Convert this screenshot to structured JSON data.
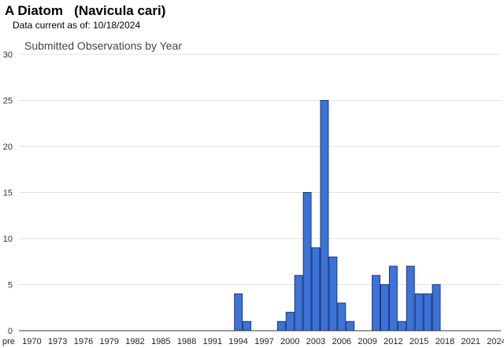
{
  "page": {
    "title": "A Diatom   (Navicula cari)",
    "data_current_label": "Data current as of:",
    "data_current_date": "10/18/2024"
  },
  "chart_data": {
    "type": "bar",
    "title": "Submitted Observations by Year",
    "xlabel": "",
    "ylabel": "",
    "ylim": [
      0,
      30
    ],
    "yticks": [
      0,
      5,
      10,
      15,
      20,
      25,
      30
    ],
    "grid": true,
    "legend": "none",
    "bar_color": "#3d73d8",
    "bar_stroke": "#1a3a78",
    "categories": [
      "pre 1970",
      "1970",
      "1971",
      "1972",
      "1973",
      "1974",
      "1975",
      "1976",
      "1977",
      "1978",
      "1979",
      "1980",
      "1981",
      "1982",
      "1983",
      "1984",
      "1985",
      "1986",
      "1987",
      "1988",
      "1989",
      "1990",
      "1991",
      "1992",
      "1993",
      "1994",
      "1995",
      "1996",
      "1997",
      "1998",
      "1999",
      "2000",
      "2001",
      "2002",
      "2003",
      "2004",
      "2005",
      "2006",
      "2007",
      "2008",
      "2009",
      "2010",
      "2011",
      "2012",
      "2013",
      "2014",
      "2015",
      "2016",
      "2017",
      "2018",
      "2019",
      "2020",
      "2021",
      "2022",
      "2023",
      "2024"
    ],
    "tick_labels": [
      "pre",
      "1970",
      "1973",
      "1976",
      "1979",
      "1982",
      "1985",
      "1988",
      "1991",
      "1994",
      "1997",
      "2000",
      "2003",
      "2006",
      "2009",
      "2012",
      "2015",
      "2018",
      "2021",
      "2024"
    ],
    "values": [
      0,
      0,
      0,
      0,
      0,
      0,
      0,
      0,
      0,
      0,
      0,
      0,
      0,
      0,
      0,
      0,
      0,
      0,
      0,
      0,
      0,
      0,
      0,
      0,
      0,
      4,
      1,
      0,
      0,
      0,
      1,
      2,
      6,
      15,
      9,
      25,
      8,
      3,
      1,
      0,
      0,
      6,
      5,
      7,
      1,
      7,
      4,
      4,
      5,
      0,
      0,
      0,
      0,
      0,
      0,
      0
    ]
  }
}
